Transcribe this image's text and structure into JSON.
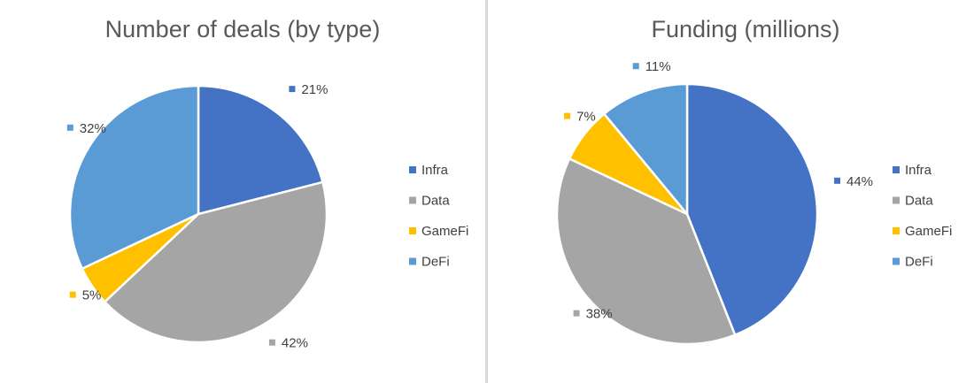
{
  "colors": {
    "Infra": "#4472c4",
    "Data": "#a5a5a5",
    "GameFi": "#ffc000",
    "DeFi": "#5b9bd5"
  },
  "chart_data": [
    {
      "type": "pie",
      "title": "Number of deals (by type)",
      "categories": [
        "Infra",
        "Data",
        "GameFi",
        "DeFi"
      ],
      "values": [
        21,
        42,
        5,
        32
      ],
      "labels": [
        "21%",
        "42%",
        "5%",
        "32%"
      ],
      "legend": "right"
    },
    {
      "type": "pie",
      "title": "Funding (millions)",
      "categories": [
        "Infra",
        "Data",
        "GameFi",
        "DeFi"
      ],
      "values": [
        44,
        38,
        7,
        11
      ],
      "labels": [
        "44%",
        "38%",
        "7%",
        "11%"
      ],
      "legend": "right"
    }
  ]
}
